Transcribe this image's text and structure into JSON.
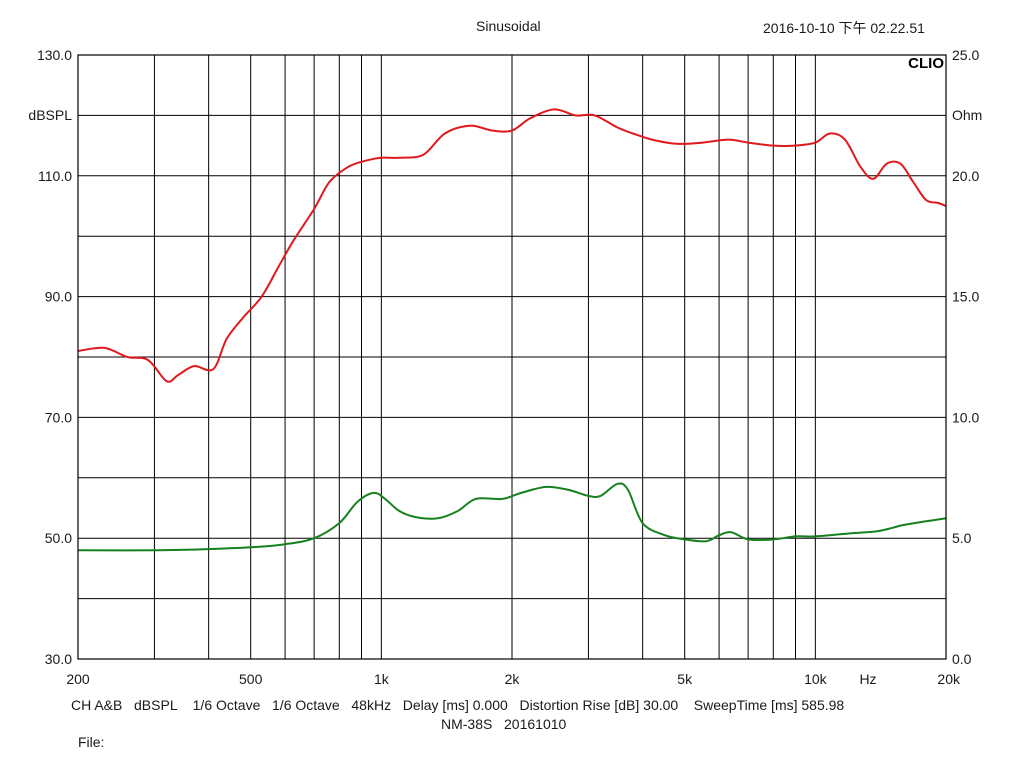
{
  "header": {
    "title": "Sinusoidal",
    "datetime": "2016-10-10 下午 02.22.51",
    "brand": "CLIO"
  },
  "chart_data": {
    "type": "line",
    "xscale": "log",
    "xlim": [
      200,
      20000
    ],
    "ylim_left": [
      30,
      130
    ],
    "ylim_right": [
      0,
      25
    ],
    "xtick_labels": [
      {
        "value": 200,
        "label": "200"
      },
      {
        "value": 500,
        "label": "500"
      },
      {
        "value": 1000,
        "label": "1k"
      },
      {
        "value": 2000,
        "label": "2k"
      },
      {
        "value": 5000,
        "label": "5k"
      },
      {
        "value": 10000,
        "label": "10k"
      },
      {
        "value": 20000,
        "label": "20k"
      }
    ],
    "x_unit_label": "Hz",
    "yticks_left": [
      "130.0",
      "110.0",
      "90.0",
      "70.0",
      "50.0",
      "30.0"
    ],
    "yticks_right": [
      "25.0",
      "20.0",
      "15.0",
      "10.0",
      "5.0",
      "0.0"
    ],
    "ylabel_left": "dBSPL",
    "ylabel_right": "Ohm",
    "grid": true,
    "series": [
      {
        "axis": "left",
        "color": "#e0191d",
        "x": [
          200,
          230,
          260,
          290,
          320,
          340,
          370,
          410,
          440,
          480,
          530,
          580,
          630,
          700,
          760,
          840,
          920,
          1000,
          1100,
          1250,
          1400,
          1600,
          1800,
          2000,
          2200,
          2500,
          2800,
          3100,
          3500,
          3800,
          4200,
          4800,
          5500,
          6300,
          7000,
          8000,
          9000,
          10000,
          10800,
          11700,
          12700,
          13600,
          14600,
          15700,
          16800,
          18000,
          19200,
          20000
        ],
        "values": [
          81,
          81.5,
          80,
          79.5,
          76,
          77,
          78.5,
          78,
          83,
          86.5,
          90,
          95,
          99.5,
          104.5,
          109,
          111.5,
          112.5,
          113,
          113,
          113.5,
          117,
          118.3,
          117.5,
          117.5,
          119.5,
          121,
          120,
          120,
          118,
          117,
          116,
          115.3,
          115.5,
          116,
          115.5,
          115,
          115,
          115.5,
          117,
          116,
          111.5,
          109.5,
          112,
          112,
          109,
          106,
          105.5,
          105
        ]
      },
      {
        "axis": "left",
        "color": "#17801f",
        "x": [
          200,
          300,
          400,
          500,
          600,
          700,
          800,
          880,
          960,
          1020,
          1100,
          1200,
          1350,
          1500,
          1650,
          1900,
          2100,
          2400,
          2700,
          3000,
          3200,
          3500,
          3700,
          4000,
          4500,
          5000,
          5600,
          6000,
          6400,
          7000,
          8000,
          9000,
          10000,
          12000,
          14000,
          16000,
          18000,
          20000
        ],
        "values": [
          48,
          48,
          48.2,
          48.5,
          49,
          50,
          52.5,
          56,
          57.5,
          56.5,
          54.5,
          53.5,
          53.3,
          54.5,
          56.5,
          56.5,
          57.5,
          58.5,
          58,
          57,
          57,
          59,
          58,
          52.5,
          50.5,
          49.8,
          49.5,
          50.5,
          51,
          49.8,
          49.8,
          50.3,
          50.3,
          50.8,
          51.2,
          52.2,
          52.8,
          53.3
        ]
      }
    ]
  },
  "footer": {
    "line1": "CH A&B   dBSPL    1/6 Octave   1/6 Octave   48kHz   Delay [ms] 0.000   Distortion Rise [dB] 30.00    SweepTime [ms] 585.98",
    "line2": "NM-38S   20161010",
    "line3": "File:"
  }
}
